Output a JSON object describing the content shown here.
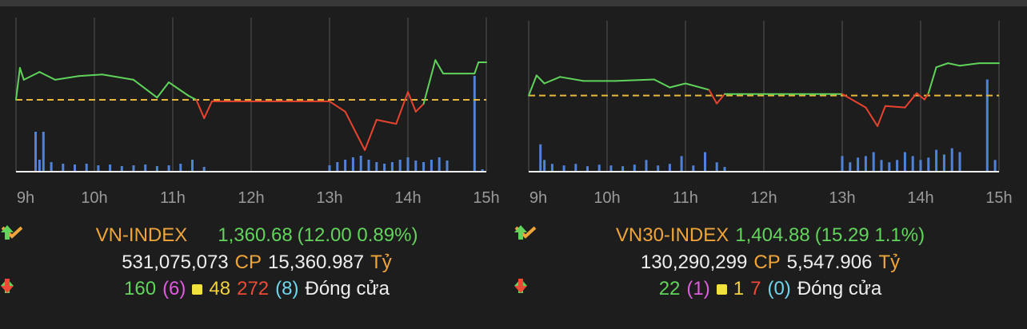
{
  "panels": [
    {
      "name": "VN-INDEX",
      "value": "1,360.68",
      "change": "(12.00 0.89%)",
      "volume": "531,075,073",
      "volume_unit": "CP",
      "turnover": "15,360.987",
      "turnover_unit": "Tỷ",
      "advances": "160",
      "ceiling": "(6)",
      "unchanged": "48",
      "declines": "272",
      "floor": "(8)",
      "status": "Đóng cửa",
      "chart": {
        "type": "line",
        "reference": 1348.68,
        "xlim": [
          9,
          15
        ],
        "ylim": [
          1325.7,
          1375
        ],
        "xticks": [
          {
            "value": 9,
            "label": "9h"
          },
          {
            "value": 10,
            "label": "10h"
          },
          {
            "value": 11,
            "label": "11h"
          },
          {
            "value": 12,
            "label": "12h"
          },
          {
            "value": 13,
            "label": "13h"
          },
          {
            "value": 14,
            "label": "14h"
          },
          {
            "value": 15,
            "label": "15h"
          }
        ],
        "x": [
          9.0,
          9.05,
          9.1,
          9.3,
          9.5,
          9.8,
          10.1,
          10.5,
          10.8,
          10.95,
          11.2,
          11.3,
          11.4,
          11.5,
          13.0,
          13.2,
          13.45,
          13.6,
          13.85,
          14.0,
          14.1,
          14.2,
          14.35,
          14.45,
          14.85,
          14.9,
          15.0
        ],
        "values": [
          1348.7,
          1358.9,
          1355.1,
          1357.6,
          1355.1,
          1356.3,
          1356.8,
          1355.1,
          1349.4,
          1354.3,
          1350.0,
          1348.7,
          1342.8,
          1348.2,
          1348.2,
          1344.9,
          1332.6,
          1342.3,
          1341.0,
          1351.2,
          1344.9,
          1347.4,
          1361.4,
          1357.1,
          1357.1,
          1360.7,
          1360.7
        ],
        "volume_x": [
          9.25,
          9.3,
          9.35,
          9.45,
          9.6,
          9.75,
          9.9,
          10.05,
          10.2,
          10.35,
          10.5,
          10.65,
          10.8,
          10.95,
          11.1,
          11.25,
          11.4,
          13.0,
          13.1,
          13.2,
          13.3,
          13.4,
          13.5,
          13.6,
          13.7,
          13.8,
          13.9,
          14.0,
          14.1,
          14.2,
          14.3,
          14.4,
          14.5,
          14.85,
          14.95
        ],
        "volume_values": [
          50,
          15,
          50,
          12,
          10,
          9,
          10,
          8,
          9,
          7,
          8,
          9,
          7,
          8,
          10,
          15,
          6,
          8,
          12,
          15,
          18,
          20,
          15,
          12,
          10,
          12,
          15,
          18,
          14,
          12,
          15,
          18,
          14,
          120,
          3
        ],
        "volume_lim": [
          0,
          193
        ]
      }
    },
    {
      "name": "VN30-INDEX",
      "value": "1,404.88",
      "change": "(15.29 1.1%)",
      "volume": "130,290,299",
      "volume_unit": "CP",
      "turnover": "5,547.906",
      "turnover_unit": "Tỷ",
      "advances": "22",
      "ceiling": "(1)",
      "unchanged": "1",
      "declines": "7",
      "floor": "(0)",
      "status": "Đóng cửa",
      "chart": {
        "type": "line",
        "reference": 1389.59,
        "xlim": [
          9,
          15
        ],
        "ylim": [
          1353.5,
          1425.0
        ],
        "xticks": [
          {
            "value": 9,
            "label": "9h"
          },
          {
            "value": 10,
            "label": "10h"
          },
          {
            "value": 11,
            "label": "11h"
          },
          {
            "value": 12,
            "label": "12h"
          },
          {
            "value": 13,
            "label": "13h"
          },
          {
            "value": 14,
            "label": "14h"
          },
          {
            "value": 15,
            "label": "15h"
          }
        ],
        "x": [
          9.0,
          9.1,
          9.2,
          9.4,
          9.7,
          10.1,
          10.6,
          10.8,
          11.0,
          11.3,
          11.4,
          11.5,
          13.0,
          13.3,
          13.45,
          13.55,
          13.8,
          13.95,
          14.05,
          14.1,
          14.2,
          14.35,
          14.5,
          14.75,
          15.0
        ],
        "values": [
          1389.6,
          1399.1,
          1395.3,
          1398.4,
          1396.5,
          1396.5,
          1397.2,
          1393.4,
          1395.3,
          1392.3,
          1385.8,
          1390.3,
          1390.3,
          1383.9,
          1375.1,
          1384.6,
          1383.9,
          1390.7,
          1387.7,
          1390.7,
          1403.0,
          1404.9,
          1403.7,
          1404.9,
          1404.9
        ],
        "volume_x": [
          9.15,
          9.2,
          9.3,
          9.45,
          9.6,
          9.75,
          9.9,
          10.05,
          10.2,
          10.35,
          10.5,
          10.65,
          10.8,
          10.95,
          11.1,
          11.25,
          11.4,
          11.5,
          13.0,
          13.1,
          13.2,
          13.3,
          13.4,
          13.5,
          13.6,
          13.7,
          13.8,
          13.9,
          14.0,
          14.1,
          14.2,
          14.3,
          14.4,
          14.5,
          14.85,
          14.95
        ],
        "volume_values": [
          35,
          15,
          10,
          8,
          10,
          7,
          9,
          8,
          7,
          9,
          15,
          8,
          10,
          20,
          8,
          25,
          12,
          6,
          20,
          12,
          18,
          20,
          25,
          15,
          12,
          15,
          25,
          20,
          15,
          18,
          28,
          22,
          30,
          25,
          118,
          15
        ],
        "volume_lim": [
          0,
          193
        ]
      }
    }
  ]
}
